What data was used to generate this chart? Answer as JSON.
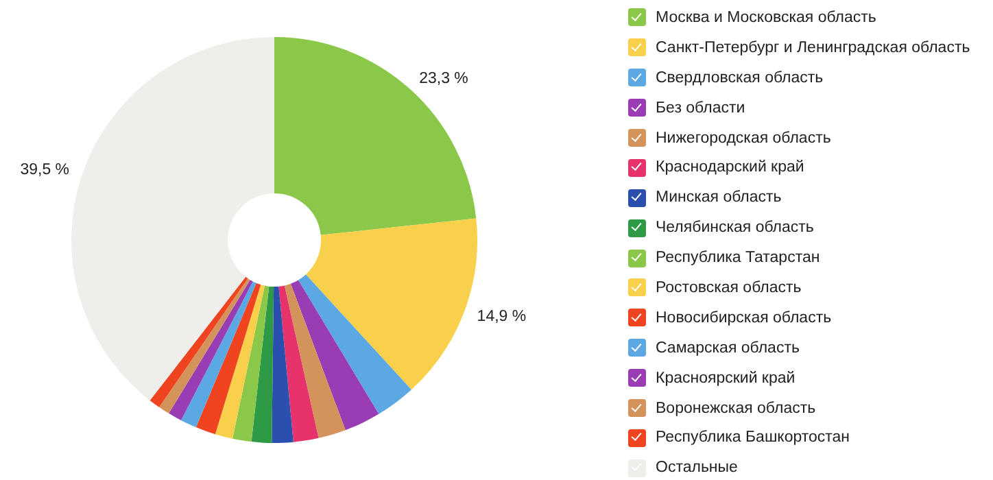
{
  "chart_data": {
    "type": "donut",
    "categories": [
      "Москва и Московская область",
      "Санкт-Петербург и Ленинградская область",
      "Свердловская область",
      "Без области",
      "Нижегородская область",
      "Краснодарский край",
      "Минская область",
      "Челябинская область",
      "Республика Татарстан",
      "Ростовская область",
      "Новосибирская область",
      "Самарская область",
      "Красноярский край",
      "Воронежская область",
      "Республика Башкортостан",
      "Остальные"
    ],
    "values": [
      23.3,
      14.9,
      3.2,
      2.9,
      2.2,
      2.0,
      1.7,
      1.6,
      1.5,
      1.4,
      1.6,
      1.3,
      1.1,
      0.9,
      0.9,
      39.5
    ],
    "colors": [
      "#8bc84a",
      "#f9d04b",
      "#5ba8e3",
      "#9a3db4",
      "#d3935a",
      "#e6336c",
      "#2b4fae",
      "#2e9a46",
      "#8bc84a",
      "#f9d04b",
      "#f0431f",
      "#5ba8e3",
      "#9a3db4",
      "#d3935a",
      "#f0431f",
      "#efeeeb"
    ],
    "value_labels": [
      "23,3 %",
      "14,9 %",
      null,
      null,
      null,
      null,
      null,
      null,
      null,
      null,
      null,
      null,
      null,
      null,
      null,
      "39,5 %"
    ],
    "legend": "right"
  }
}
